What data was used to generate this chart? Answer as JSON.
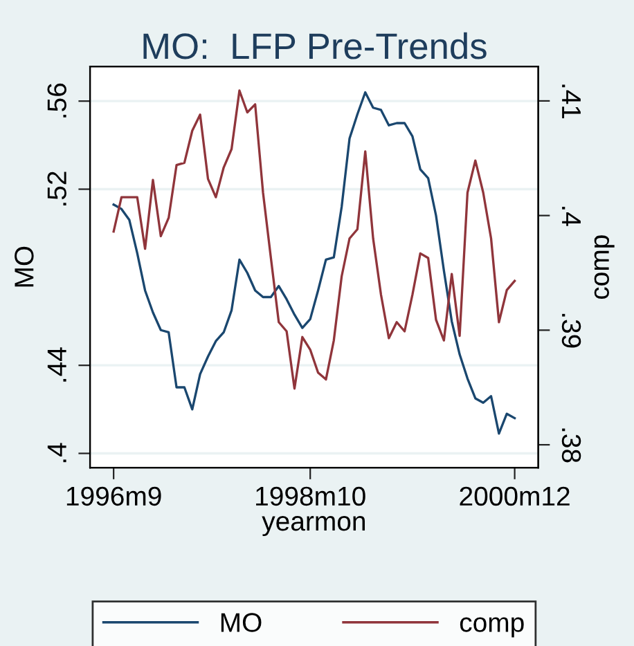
{
  "chart_data": {
    "type": "line",
    "title": "MO:  LFP Pre-Trends",
    "xlabel": "yearmon",
    "ylabel": "MO",
    "y2label": "comp",
    "x": [
      "1996-09",
      "1996-10",
      "1996-11",
      "1996-12",
      "1997-01",
      "1997-02",
      "1997-03",
      "1997-04",
      "1997-05",
      "1997-06",
      "1997-07",
      "1997-08",
      "1997-09",
      "1997-10",
      "1997-11",
      "1997-12",
      "1998-01",
      "1998-02",
      "1998-03",
      "1998-04",
      "1998-05",
      "1998-06",
      "1998-07",
      "1998-08",
      "1998-09",
      "1998-10",
      "1998-11",
      "1998-12",
      "1999-01",
      "1999-02",
      "1999-03",
      "1999-04",
      "1999-05",
      "1999-06",
      "1999-07",
      "1999-08",
      "1999-09",
      "1999-10",
      "1999-11",
      "1999-12",
      "2000-01",
      "2000-02",
      "2000-03",
      "2000-04",
      "2000-05",
      "2000-06",
      "2000-07",
      "2000-08",
      "2000-09",
      "2000-10",
      "2000-11",
      "2000-12"
    ],
    "series": [
      {
        "name": "MO",
        "color": "#1a476f",
        "values": [
          0.513,
          0.511,
          0.506,
          0.491,
          0.474,
          0.464,
          0.456,
          0.455,
          0.43,
          0.43,
          0.42,
          0.436,
          0.444,
          0.451,
          0.455,
          0.465,
          0.488,
          0.482,
          0.474,
          0.471,
          0.471,
          0.476,
          0.47,
          0.463,
          0.457,
          0.461,
          0.474,
          0.488,
          0.489,
          0.512,
          0.543,
          0.554,
          0.564,
          0.557,
          0.556,
          0.549,
          0.55,
          0.55,
          0.544,
          0.529,
          0.525,
          0.508,
          0.483,
          0.46,
          0.445,
          0.434,
          0.425,
          0.423,
          0.426,
          0.409,
          0.418,
          0.416
        ]
      },
      {
        "name": "comp",
        "color": "#90353b",
        "axis": "y2",
        "values": [
          0.3986,
          0.4016,
          0.4016,
          0.4016,
          0.3971,
          0.4031,
          0.3982,
          0.3998,
          0.4044,
          0.4046,
          0.4074,
          0.4088,
          0.4032,
          0.4016,
          0.4042,
          0.4058,
          0.4109,
          0.409,
          0.4097,
          0.402,
          0.3963,
          0.3907,
          0.3899,
          0.3849,
          0.3894,
          0.3883,
          0.3863,
          0.3857,
          0.3891,
          0.3947,
          0.398,
          0.3988,
          0.4056,
          0.398,
          0.3931,
          0.3893,
          0.3907,
          0.3899,
          0.3931,
          0.3967,
          0.3963,
          0.3909,
          0.3891,
          0.3949,
          0.3895,
          0.402,
          0.4048,
          0.402,
          0.398,
          0.3907,
          0.3935,
          0.3943
        ]
      }
    ],
    "xlim": [
      "1996-06",
      "2001-03"
    ],
    "xticks": [
      {
        "value": "1996-09",
        "label": "1996m9"
      },
      {
        "value": "1998-10",
        "label": "1998m10"
      },
      {
        "value": "2000-12",
        "label": "2000m12"
      }
    ],
    "ylim": [
      0.3935,
      0.5757
    ],
    "yticks": [
      {
        "value": 0.4,
        "label": ".4"
      },
      {
        "value": 0.44,
        "label": ".44"
      },
      {
        "value": 0.52,
        "label": ".52"
      },
      {
        "value": 0.56,
        "label": ".56"
      }
    ],
    "y2lim": [
      0.378,
      0.413
    ],
    "y2ticks": [
      {
        "value": 0.38,
        "label": ".38"
      },
      {
        "value": 0.39,
        "label": ".39"
      },
      {
        "value": 0.4,
        "label": ".4"
      },
      {
        "value": 0.41,
        "label": ".41"
      }
    ],
    "grid": "y",
    "legend": "bottom",
    "marker": "none",
    "line_style": "solid"
  }
}
